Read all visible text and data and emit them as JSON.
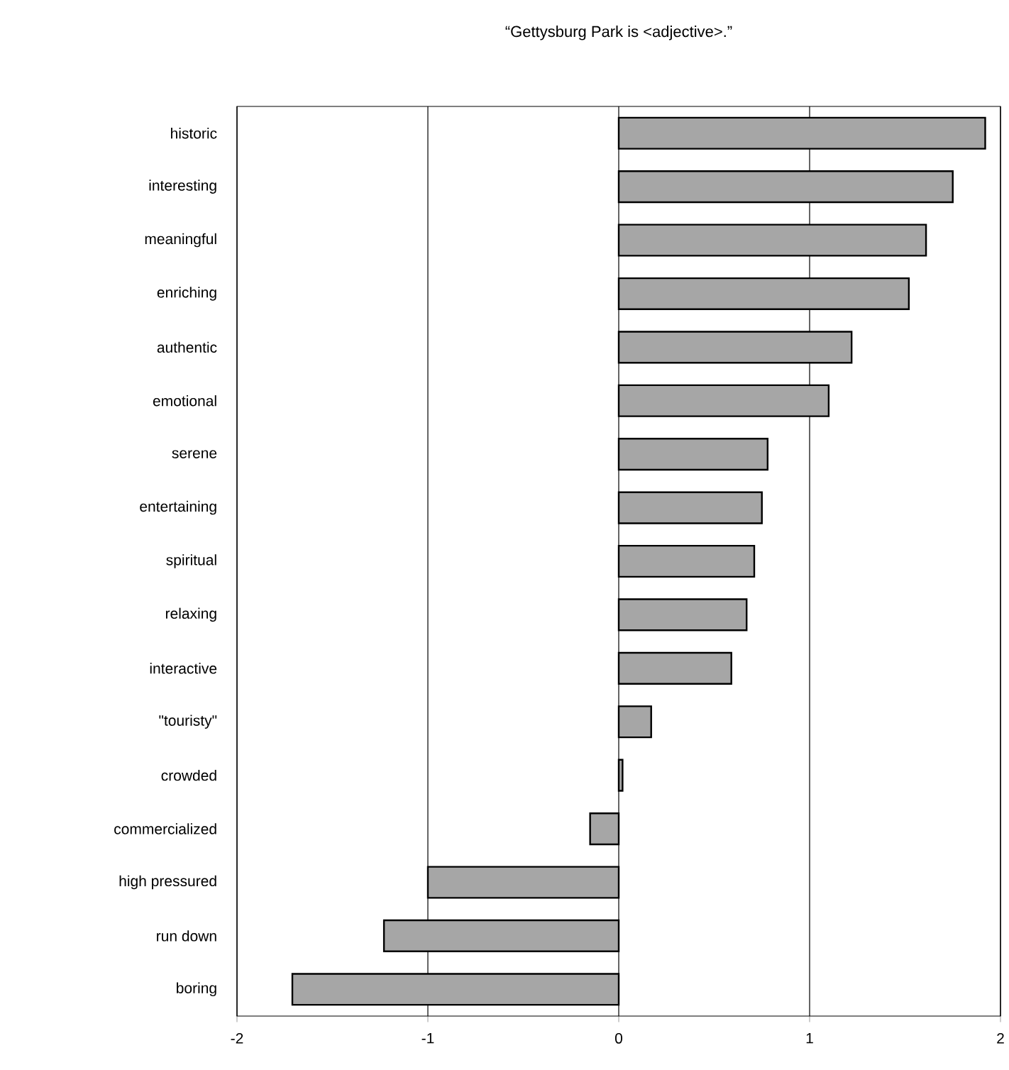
{
  "chart_data": {
    "type": "bar",
    "orientation": "horizontal",
    "title": "“Gettysburg Park is <adjective>.”",
    "categories": [
      "historic",
      "interesting",
      "meaningful",
      "enriching",
      "authentic",
      "emotional",
      "serene",
      "entertaining",
      "spiritual",
      "relaxing",
      "interactive",
      "\"touristy\"",
      "crowded",
      "commercialized",
      "high pressured",
      "run down",
      "boring"
    ],
    "values": [
      1.92,
      1.75,
      1.61,
      1.52,
      1.22,
      1.1,
      0.78,
      0.75,
      0.71,
      0.67,
      0.59,
      0.17,
      0.02,
      -0.15,
      -1.0,
      -1.23,
      -1.71
    ],
    "color": "#a6a6a6",
    "xlim": [
      -2,
      2
    ],
    "xticks": [
      -2,
      -1,
      0,
      1,
      2
    ],
    "grid": "x"
  }
}
